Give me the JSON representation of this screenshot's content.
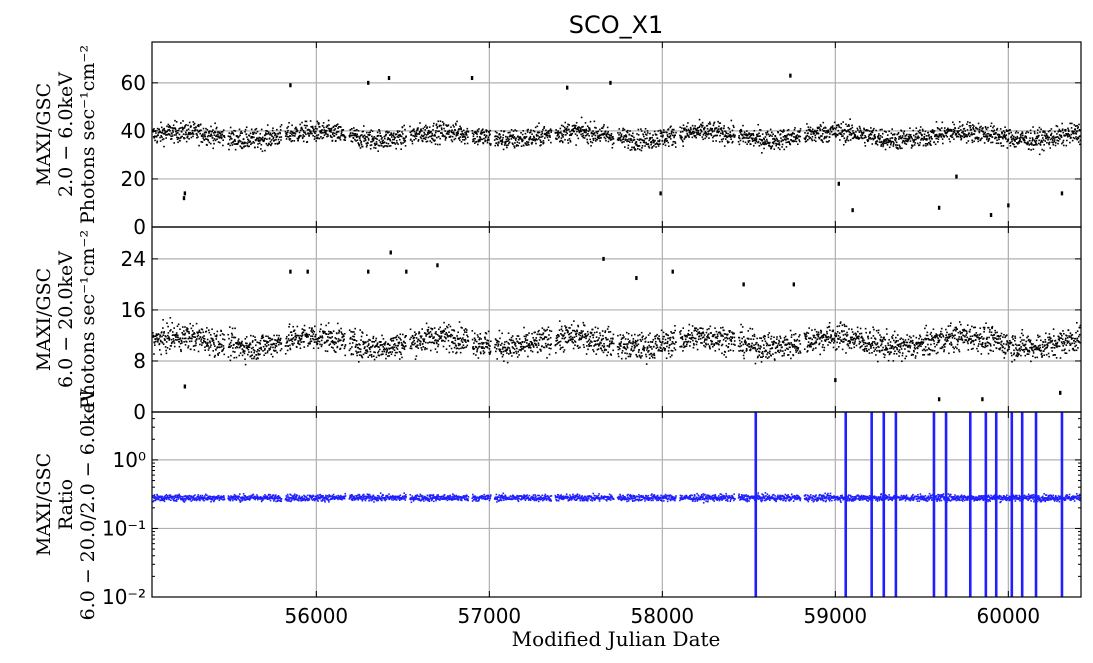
{
  "chart_data": {
    "type": "scatter",
    "title": "SCO_X1",
    "xlabel": "Modified Julian Date",
    "xlim": [
      55050,
      60420
    ],
    "xticks": [
      "56000",
      "57000",
      "58000",
      "59000",
      "60000"
    ],
    "grid": true,
    "panels": [
      {
        "ylabel_lines": [
          "MAXI/GSC",
          "2.0 − 6.0keV",
          "Photons sec⁻¹cm⁻²"
        ],
        "ylim": [
          0,
          77
        ],
        "yticks": [
          "0",
          "20",
          "40",
          "60"
        ],
        "yscale": "linear",
        "color": "#000000",
        "baseline": 38,
        "spread": 4,
        "outliers": [
          [
            55240,
            14
          ],
          [
            55235,
            12
          ],
          [
            55850,
            59
          ],
          [
            56300,
            60
          ],
          [
            56420,
            62
          ],
          [
            56900,
            62
          ],
          [
            57450,
            58
          ],
          [
            57700,
            60
          ],
          [
            58740,
            63
          ],
          [
            59020,
            18
          ],
          [
            59100,
            7
          ],
          [
            59600,
            8
          ],
          [
            59700,
            21
          ],
          [
            59900,
            5
          ],
          [
            60000,
            9
          ],
          [
            60310,
            14
          ],
          [
            57990,
            14
          ]
        ]
      },
      {
        "ylabel_lines": [
          "MAXI/GSC",
          "6.0 − 20.0keV",
          "Photons sec⁻¹cm⁻²"
        ],
        "ylim": [
          0,
          29
        ],
        "yticks": [
          "0",
          "8",
          "16",
          "24"
        ],
        "yscale": "linear",
        "color": "#000000",
        "baseline": 11,
        "spread": 2,
        "outliers": [
          [
            55240,
            4
          ],
          [
            55850,
            22
          ],
          [
            55950,
            22
          ],
          [
            56300,
            22
          ],
          [
            56430,
            25
          ],
          [
            56520,
            22
          ],
          [
            56700,
            23
          ],
          [
            57660,
            24
          ],
          [
            57850,
            21
          ],
          [
            58060,
            22
          ],
          [
            58470,
            20
          ],
          [
            58760,
            20
          ],
          [
            59000,
            5
          ],
          [
            59600,
            2
          ],
          [
            59850,
            2
          ],
          [
            60300,
            3
          ]
        ]
      },
      {
        "ylabel_lines": [
          "MAXI/GSC",
          "Ratio",
          "6.0 − 20.0/2.0 − 6.0keV"
        ],
        "ylim": [
          0.01,
          5
        ],
        "yticks": [
          "10⁻²",
          "10⁻¹",
          "10⁰"
        ],
        "ytick_values": [
          0.01,
          0.1,
          1
        ],
        "yscale": "log",
        "color": "#1f1fff",
        "baseline": 0.28,
        "spread": 0.025,
        "spikes": [
          58540,
          59060,
          59210,
          59280,
          59350,
          59570,
          59640,
          59780,
          59870,
          59930,
          60020,
          60080,
          60160,
          60310
        ]
      }
    ]
  }
}
